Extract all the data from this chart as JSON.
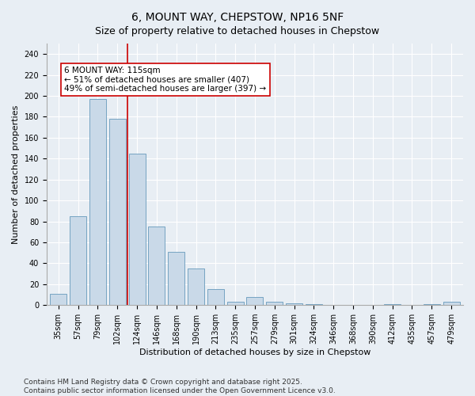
{
  "title": "6, MOUNT WAY, CHEPSTOW, NP16 5NF",
  "subtitle": "Size of property relative to detached houses in Chepstow",
  "xlabel": "Distribution of detached houses by size in Chepstow",
  "ylabel": "Number of detached properties",
  "categories": [
    "35sqm",
    "57sqm",
    "79sqm",
    "102sqm",
    "124sqm",
    "146sqm",
    "168sqm",
    "190sqm",
    "213sqm",
    "235sqm",
    "257sqm",
    "279sqm",
    "301sqm",
    "324sqm",
    "346sqm",
    "368sqm",
    "390sqm",
    "412sqm",
    "435sqm",
    "457sqm",
    "479sqm"
  ],
  "values": [
    11,
    85,
    197,
    178,
    145,
    75,
    51,
    35,
    15,
    3,
    8,
    3,
    2,
    1,
    0,
    0,
    0,
    1,
    0,
    1,
    3
  ],
  "bar_color": "#c9d9e8",
  "bar_edge_color": "#6699bb",
  "vline_x": 3.5,
  "vline_color": "#cc0000",
  "annotation_text": "6 MOUNT WAY: 115sqm\n← 51% of detached houses are smaller (407)\n49% of semi-detached houses are larger (397) →",
  "annotation_box_color": "#cc0000",
  "ylim": [
    0,
    250
  ],
  "yticks": [
    0,
    20,
    40,
    60,
    80,
    100,
    120,
    140,
    160,
    180,
    200,
    220,
    240
  ],
  "background_color": "#e8eef4",
  "plot_background_color": "#e8eef4",
  "grid_color": "#ffffff",
  "footer": "Contains HM Land Registry data © Crown copyright and database right 2025.\nContains public sector information licensed under the Open Government Licence v3.0.",
  "title_fontsize": 10,
  "subtitle_fontsize": 9,
  "xlabel_fontsize": 8,
  "ylabel_fontsize": 8,
  "tick_fontsize": 7,
  "annotation_fontsize": 7.5,
  "footer_fontsize": 6.5
}
